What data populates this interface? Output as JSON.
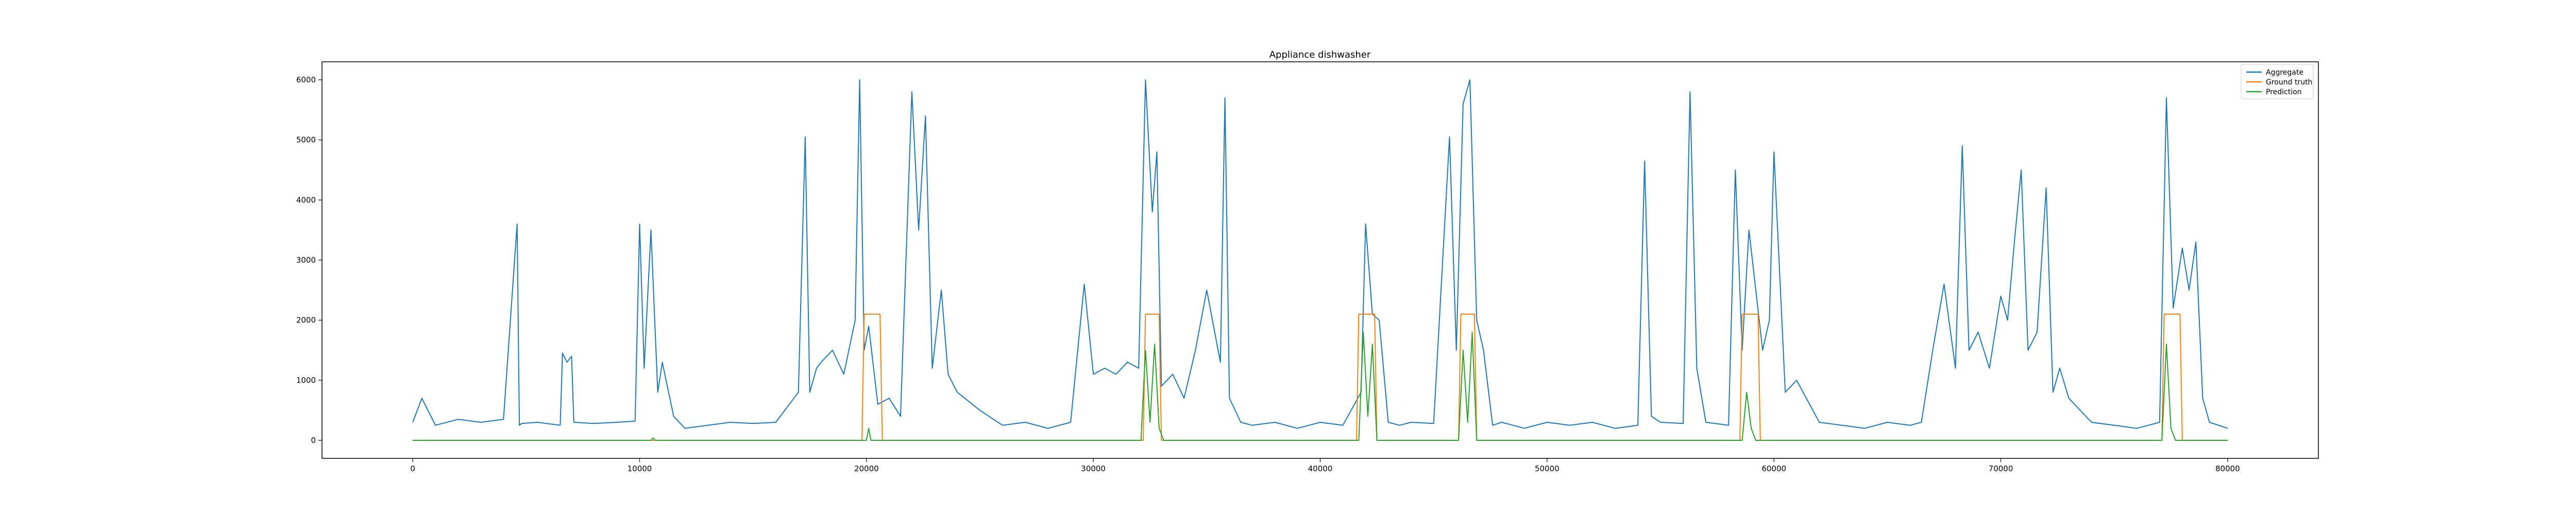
{
  "chart_data": {
    "type": "line",
    "title": "Appliance dishwasher",
    "xlabel": "",
    "ylabel": "",
    "xlim": [
      -4000,
      84000
    ],
    "ylim": [
      -300,
      6300
    ],
    "x_ticks": [
      0,
      10000,
      20000,
      30000,
      40000,
      50000,
      60000,
      70000,
      80000
    ],
    "y_ticks": [
      0,
      1000,
      2000,
      3000,
      4000,
      5000,
      6000
    ],
    "legend_position": "top-right",
    "grid": false,
    "series": [
      {
        "name": "Aggregate",
        "color": "#1f77b4",
        "x": [
          0,
          400,
          1000,
          2000,
          3000,
          4000,
          4600,
          4700,
          4800,
          5500,
          6500,
          6600,
          6800,
          7000,
          7100,
          8000,
          9000,
          9800,
          10000,
          10200,
          10500,
          10800,
          11000,
          11500,
          12000,
          13000,
          14000,
          15000,
          16000,
          17000,
          17300,
          17500,
          17800,
          18000,
          18500,
          19000,
          19500,
          19700,
          19900,
          20100,
          20500,
          21000,
          21500,
          22000,
          22300,
          22600,
          22900,
          23300,
          23600,
          24000,
          25000,
          26000,
          27000,
          28000,
          29000,
          29600,
          30000,
          30500,
          31000,
          31500,
          32000,
          32300,
          32600,
          32800,
          33000,
          33500,
          34000,
          34500,
          35000,
          35600,
          35800,
          36000,
          36500,
          37000,
          38000,
          39000,
          40000,
          41000,
          41800,
          42000,
          42300,
          42600,
          43000,
          43500,
          44000,
          45000,
          45700,
          46000,
          46300,
          46600,
          46900,
          47200,
          47600,
          48000,
          49000,
          50000,
          51000,
          52000,
          53000,
          54000,
          54300,
          54600,
          55000,
          56000,
          56300,
          56600,
          57000,
          58000,
          58300,
          58600,
          58900,
          59200,
          59500,
          59800,
          60000,
          60500,
          61000,
          62000,
          63000,
          64000,
          65000,
          66000,
          66500,
          67000,
          67500,
          68000,
          68300,
          68600,
          69000,
          69500,
          70000,
          70300,
          70600,
          70900,
          71200,
          71600,
          72000,
          72300,
          72600,
          73000,
          74000,
          75000,
          76000,
          77000,
          77300,
          77600,
          78000,
          78300,
          78600,
          78900,
          79200,
          79600,
          80000
        ],
        "values": [
          300,
          700,
          250,
          350,
          300,
          350,
          3600,
          250,
          280,
          300,
          250,
          1450,
          1300,
          1400,
          300,
          280,
          300,
          320,
          3600,
          1200,
          3500,
          800,
          1300,
          400,
          200,
          250,
          300,
          280,
          300,
          800,
          5050,
          800,
          1200,
          1300,
          1500,
          1100,
          2000,
          6000,
          1500,
          1900,
          600,
          700,
          400,
          5800,
          3500,
          5400,
          1200,
          2500,
          1100,
          800,
          500,
          250,
          300,
          200,
          300,
          2600,
          1100,
          1200,
          1100,
          1300,
          1200,
          6000,
          3800,
          4800,
          900,
          1100,
          700,
          1500,
          2500,
          1300,
          5700,
          700,
          300,
          250,
          300,
          200,
          300,
          250,
          800,
          3600,
          2100,
          2000,
          300,
          250,
          300,
          280,
          5050,
          1500,
          5600,
          6000,
          2000,
          1500,
          250,
          300,
          200,
          300,
          250,
          300,
          200,
          250,
          4650,
          400,
          300,
          280,
          5800,
          1200,
          300,
          250,
          4500,
          1500,
          3500,
          2500,
          1500,
          2000,
          4800,
          800,
          1000,
          300,
          250,
          200,
          300,
          250,
          300,
          1500,
          2600,
          1200,
          4900,
          1500,
          1800,
          1200,
          2400,
          2000,
          3300,
          4500,
          1500,
          1800,
          4200,
          800,
          1200,
          700,
          300,
          250,
          200,
          300,
          5700,
          2200,
          3200,
          2500,
          3300,
          700,
          300,
          250,
          200
        ]
      },
      {
        "name": "Ground truth",
        "color": "#ff7f0e",
        "x": [
          0,
          19800,
          19900,
          20600,
          20700,
          32200,
          32300,
          32900,
          33000,
          41600,
          41700,
          42400,
          42500,
          46100,
          46200,
          46800,
          46900,
          58500,
          58600,
          59300,
          59400,
          77100,
          77200,
          77900,
          78000,
          80000
        ],
        "values": [
          0,
          0,
          2100,
          2100,
          0,
          0,
          2100,
          2100,
          0,
          0,
          2100,
          2100,
          0,
          0,
          2100,
          2100,
          0,
          0,
          2100,
          2100,
          0,
          0,
          2100,
          2100,
          0,
          0
        ]
      },
      {
        "name": "Prediction",
        "color": "#2ca02c",
        "x": [
          0,
          10500,
          10600,
          10700,
          20000,
          20100,
          20200,
          32100,
          32300,
          32500,
          32700,
          32900,
          33100,
          41700,
          41900,
          42100,
          42300,
          42500,
          46100,
          46300,
          46500,
          46700,
          46900,
          58600,
          58800,
          59000,
          59200,
          77100,
          77300,
          77500,
          77700,
          80000
        ],
        "values": [
          0,
          0,
          40,
          0,
          0,
          200,
          0,
          0,
          1500,
          300,
          1600,
          200,
          0,
          0,
          1800,
          400,
          1600,
          0,
          0,
          1500,
          300,
          1800,
          0,
          0,
          800,
          200,
          0,
          0,
          1600,
          200,
          0,
          0
        ]
      }
    ]
  }
}
